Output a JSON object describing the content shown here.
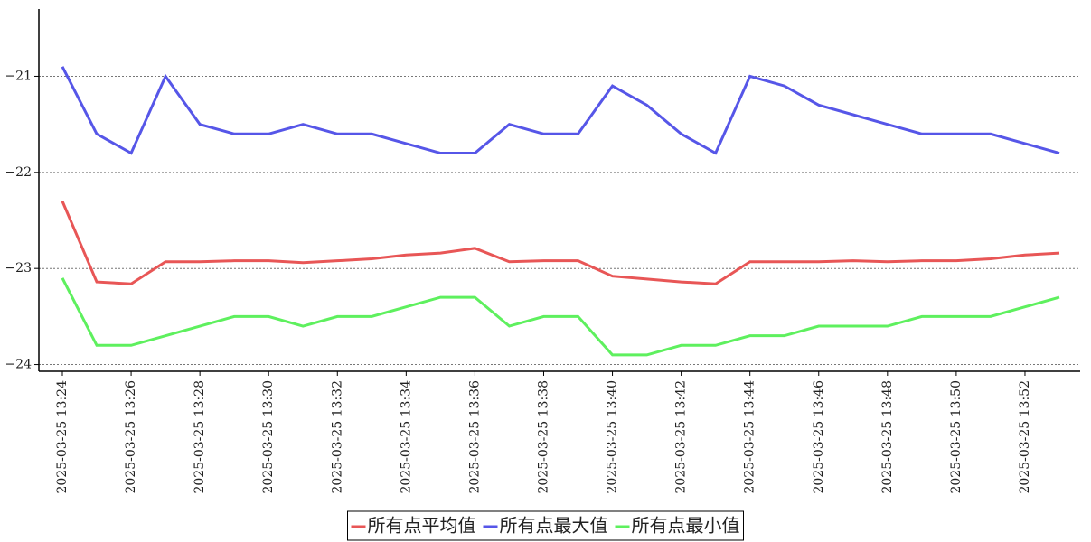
{
  "chart_data": {
    "type": "line",
    "categories": [
      "2025-03-25 13:24",
      null,
      "2025-03-25 13:26",
      null,
      "2025-03-25 13:28",
      null,
      "2025-03-25 13:30",
      null,
      "2025-03-25 13:32",
      null,
      "2025-03-25 13:34",
      null,
      "2025-03-25 13:36",
      null,
      "2025-03-25 13:38",
      null,
      "2025-03-25 13:40",
      null,
      "2025-03-25 13:42",
      null,
      "2025-03-25 13:44",
      null,
      "2025-03-25 13:46",
      null,
      "2025-03-25 13:48",
      null,
      "2025-03-25 13:50",
      null,
      "2025-03-25 13:52",
      null
    ],
    "series": [
      {
        "name": "所有点平均值",
        "color": "#e85656",
        "values": [
          -22.3,
          -23.14,
          -23.16,
          -22.93,
          -22.93,
          -22.92,
          -22.92,
          -22.94,
          -22.92,
          -22.9,
          -22.86,
          -22.84,
          -22.79,
          -22.93,
          -22.92,
          -22.92,
          -23.08,
          -23.11,
          -23.14,
          -23.16,
          -22.93,
          -22.93,
          -22.93,
          -22.92,
          -22.93,
          -22.92,
          -22.92,
          -22.9,
          -22.86,
          -22.84
        ]
      },
      {
        "name": "所有点最大值",
        "color": "#5656e8",
        "values": [
          -20.9,
          -21.6,
          -21.8,
          -21.0,
          -21.5,
          -21.6,
          -21.6,
          -21.5,
          -21.6,
          -21.6,
          -21.7,
          -21.8,
          -21.8,
          -21.5,
          -21.6,
          -21.6,
          -21.1,
          -21.3,
          -21.6,
          -21.8,
          -21.0,
          -21.1,
          -21.3,
          -21.4,
          -21.5,
          -21.6,
          -21.6,
          -21.6,
          -21.7,
          -21.8
        ]
      },
      {
        "name": "所有点最小值",
        "color": "#5ef05e",
        "values": [
          -23.1,
          -23.8,
          -23.8,
          -23.7,
          -23.6,
          -23.5,
          -23.5,
          -23.6,
          -23.5,
          -23.5,
          -23.4,
          -23.3,
          -23.3,
          -23.6,
          -23.5,
          -23.5,
          -23.9,
          -23.9,
          -23.8,
          -23.8,
          -23.7,
          -23.7,
          -23.6,
          -23.6,
          -23.6,
          -23.5,
          -23.5,
          -23.5,
          -23.4,
          -23.3
        ]
      }
    ],
    "ylim": [
      -24.07,
      -20.3
    ],
    "yticks": [
      {
        "value": -24,
        "label": "−24"
      },
      {
        "value": -23,
        "label": "−23"
      },
      {
        "value": -22,
        "label": "−22"
      },
      {
        "value": -21,
        "label": "−21"
      }
    ],
    "grid": true,
    "legend": "bottom"
  }
}
